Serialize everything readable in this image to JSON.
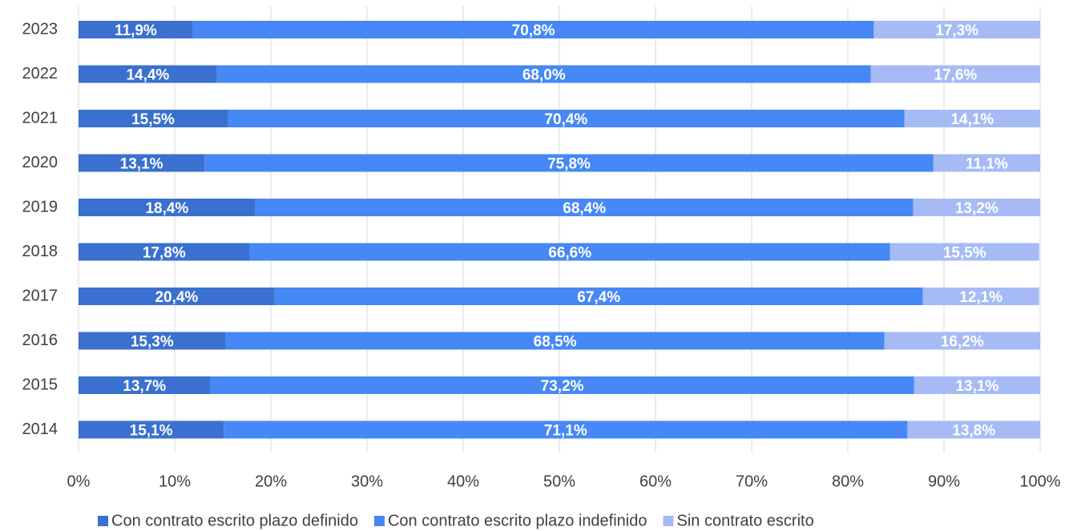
{
  "chart_data": {
    "type": "stacked_bar_horizontal",
    "categories": [
      "2023",
      "2022",
      "2021",
      "2020",
      "2019",
      "2018",
      "2017",
      "2016",
      "2015",
      "2014"
    ],
    "series": [
      {
        "name": "Con contrato escrito plazo definido",
        "color": "#3a70cf",
        "values": [
          11.9,
          14.4,
          15.5,
          13.1,
          18.4,
          17.8,
          20.4,
          15.3,
          13.7,
          15.1
        ],
        "value_labels": [
          "11,9%",
          "14,4%",
          "15,5%",
          "13,1%",
          "18,4%",
          "17,8%",
          "20,4%",
          "15,3%",
          "13,7%",
          "15,1%"
        ]
      },
      {
        "name": "Con contrato escrito plazo indefinido",
        "color": "#4688f5",
        "values": [
          70.8,
          68.0,
          70.4,
          75.8,
          68.4,
          66.6,
          67.4,
          68.5,
          73.2,
          71.1
        ],
        "value_labels": [
          "70,8%",
          "68,0%",
          "70,4%",
          "75,8%",
          "68,4%",
          "66,6%",
          "67,4%",
          "68,5%",
          "73,2%",
          "71,1%"
        ]
      },
      {
        "name": "Sin contrato escrito",
        "color": "#a6bbf6",
        "values": [
          17.3,
          17.6,
          14.1,
          11.1,
          13.2,
          15.5,
          12.1,
          16.2,
          13.1,
          13.8
        ],
        "value_labels": [
          "17,3%",
          "17,6%",
          "14,1%",
          "11,1%",
          "13,2%",
          "15,5%",
          "12,1%",
          "16,2%",
          "13,1%",
          "13,8%"
        ]
      }
    ],
    "xlim": [
      0,
      100
    ],
    "xticks": [
      {
        "value": 0,
        "label": "0%"
      },
      {
        "value": 10,
        "label": "10%"
      },
      {
        "value": 20,
        "label": "20%"
      },
      {
        "value": 30,
        "label": "30%"
      },
      {
        "value": 40,
        "label": "40%"
      },
      {
        "value": 50,
        "label": "50%"
      },
      {
        "value": 60,
        "label": "60%"
      },
      {
        "value": 70,
        "label": "70%"
      },
      {
        "value": 80,
        "label": "80%"
      },
      {
        "value": 90,
        "label": "90%"
      },
      {
        "value": 100,
        "label": "100%"
      }
    ],
    "grid": true,
    "legend": "bottom"
  }
}
